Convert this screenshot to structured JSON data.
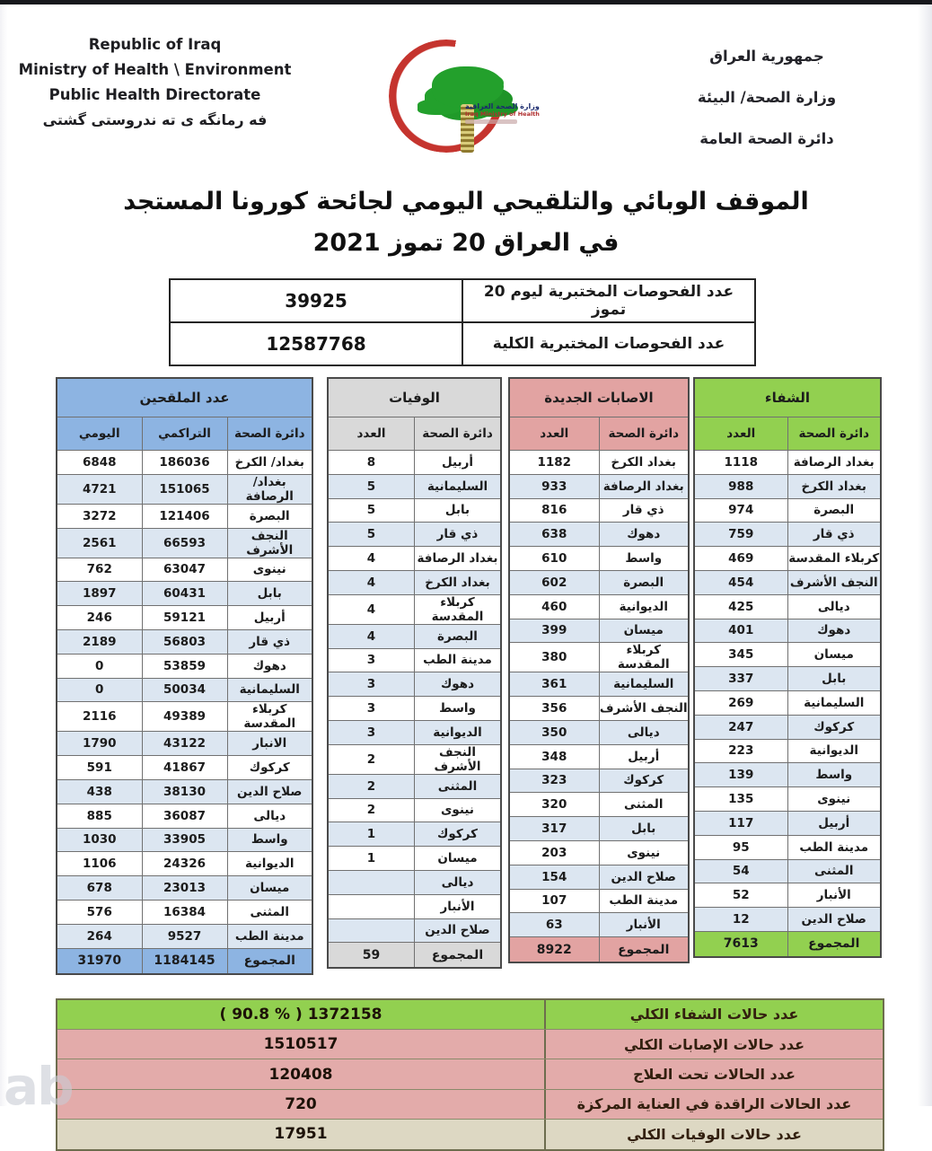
{
  "page": {
    "watermark": "ab"
  },
  "header": {
    "left": {
      "line1": "Republic of Iraq",
      "line2": "Ministry of Health \\ Environment",
      "line3": "Public Health Directorate",
      "line4": "فه رمانگه ی ته ندروستی گشتی"
    },
    "right": {
      "line1": "جمهورية العراق",
      "line2": "وزارة الصحة/ البيئة",
      "line3": "دائرة الصحة العامة"
    },
    "logo": {
      "arabic": "وزارة الصحة العراقية",
      "english": "Iraq Ministry of Health"
    }
  },
  "title": {
    "line1": "الموقف الوبائي والتلقيحي اليومي لجائحة كورونا المستجد",
    "line2": "في العراق 20  تموز 2021"
  },
  "tests": {
    "rows": [
      {
        "label": "عدد الفحوصات المختبرية  ليوم 20 تموز",
        "value": "39925"
      },
      {
        "label": "عدد الفحوصات المختبرية الكلية",
        "value": "12587768"
      }
    ]
  },
  "tables": {
    "vaccinated": {
      "title": "عدد الملقحين",
      "col_name": "دائرة الصحة",
      "col_cum": "التراكمي",
      "col_daily": "اليومي",
      "rows": [
        [
          "بغداد/ الكرخ",
          "186036",
          "6848"
        ],
        [
          "بغداد/ الرصافة",
          "151065",
          "4721"
        ],
        [
          "البصرة",
          "121406",
          "3272"
        ],
        [
          "النجف الأشرف",
          "66593",
          "2561"
        ],
        [
          "نينوى",
          "63047",
          "762"
        ],
        [
          "بابل",
          "60431",
          "1897"
        ],
        [
          "أربيل",
          "59121",
          "246"
        ],
        [
          "ذي قار",
          "56803",
          "2189"
        ],
        [
          "دهوك",
          "53859",
          "0"
        ],
        [
          "السليمانية",
          "50034",
          "0"
        ],
        [
          "كربلاء المقدسة",
          "49389",
          "2116"
        ],
        [
          "الانبار",
          "43122",
          "1790"
        ],
        [
          "كركوك",
          "41867",
          "591"
        ],
        [
          "صلاح الدين",
          "38130",
          "438"
        ],
        [
          "ديالى",
          "36087",
          "885"
        ],
        [
          "واسط",
          "33905",
          "1030"
        ],
        [
          "الديوانية",
          "24326",
          "1106"
        ],
        [
          "ميسان",
          "23013",
          "678"
        ],
        [
          "المثنى",
          "16384",
          "576"
        ],
        [
          "مدينة الطب",
          "9527",
          "264"
        ]
      ],
      "total": [
        "المجموع",
        "1184145",
        "31970"
      ]
    },
    "deaths": {
      "title": "الوفيات",
      "col_name": "دائرة الصحة",
      "col_count": "العدد",
      "rows": [
        [
          "أربيل",
          "8"
        ],
        [
          "السليمانية",
          "5"
        ],
        [
          "بابل",
          "5"
        ],
        [
          "ذي قار",
          "5"
        ],
        [
          "بغداد الرصافة",
          "4"
        ],
        [
          "بغداد الكرخ",
          "4"
        ],
        [
          "كربلاء المقدسة",
          "4"
        ],
        [
          "البصرة",
          "4"
        ],
        [
          "مدينة الطب",
          "3"
        ],
        [
          "دهوك",
          "3"
        ],
        [
          "واسط",
          "3"
        ],
        [
          "الديوانية",
          "3"
        ],
        [
          "النجف الأشرف",
          "2"
        ],
        [
          "المثنى",
          "2"
        ],
        [
          "نينوى",
          "2"
        ],
        [
          "كركوك",
          "1"
        ],
        [
          "ميسان",
          "1"
        ],
        [
          "ديالى",
          ""
        ],
        [
          "الأنبار",
          ""
        ],
        [
          "صلاح الدين",
          ""
        ]
      ],
      "total": [
        "المجموع",
        "59"
      ]
    },
    "infections": {
      "title": "الاصابات الجديدة",
      "col_name": "دائرة الصحة",
      "col_count": "العدد",
      "rows": [
        [
          "بغداد الكرخ",
          "1182"
        ],
        [
          "بغداد الرصافة",
          "933"
        ],
        [
          "ذي قار",
          "816"
        ],
        [
          "دهوك",
          "638"
        ],
        [
          "واسط",
          "610"
        ],
        [
          "البصرة",
          "602"
        ],
        [
          "الديوانية",
          "460"
        ],
        [
          "ميسان",
          "399"
        ],
        [
          "كربلاء المقدسة",
          "380"
        ],
        [
          "السليمانية",
          "361"
        ],
        [
          "النجف الأشرف",
          "356"
        ],
        [
          "ديالى",
          "350"
        ],
        [
          "أربيل",
          "348"
        ],
        [
          "كركوك",
          "323"
        ],
        [
          "المثنى",
          "320"
        ],
        [
          "بابل",
          "317"
        ],
        [
          "نينوى",
          "203"
        ],
        [
          "صلاح الدين",
          "154"
        ],
        [
          "مدينة الطب",
          "107"
        ],
        [
          "الأنبار",
          "63"
        ]
      ],
      "total": [
        "المجموع",
        "8922"
      ]
    },
    "recovery": {
      "title": "الشفاء",
      "col_name": "دائرة الصحة",
      "col_count": "العدد",
      "rows": [
        [
          "بغداد الرصافة",
          "1118"
        ],
        [
          "بغداد الكرخ",
          "988"
        ],
        [
          "البصرة",
          "974"
        ],
        [
          "ذي قار",
          "759"
        ],
        [
          "كربلاء المقدسة",
          "469"
        ],
        [
          "النجف الأشرف",
          "454"
        ],
        [
          "ديالى",
          "425"
        ],
        [
          "دهوك",
          "401"
        ],
        [
          "ميسان",
          "345"
        ],
        [
          "بابل",
          "337"
        ],
        [
          "السليمانية",
          "269"
        ],
        [
          "كركوك",
          "247"
        ],
        [
          "الديوانية",
          "223"
        ],
        [
          "واسط",
          "139"
        ],
        [
          "نينوى",
          "135"
        ],
        [
          "أربيل",
          "117"
        ],
        [
          "مدينة الطب",
          "95"
        ],
        [
          "المثنى",
          "54"
        ],
        [
          "الأنبار",
          "52"
        ],
        [
          "صلاح الدين",
          "12"
        ]
      ],
      "total": [
        "المجموع",
        "7613"
      ]
    }
  },
  "summary": {
    "rows": [
      {
        "label": "عدد حالات الشفاء الكلي",
        "value": "( 90.8 % )  1372158",
        "type": "sgreen"
      },
      {
        "label": "عدد حالات الإصابات الكلي",
        "value": "1510517",
        "type": "spink"
      },
      {
        "label": "عدد الحالات تحت العلاج",
        "value": "120408",
        "type": "spink"
      },
      {
        "label": "عدد الحالات الراقدة في العناية المركزة",
        "value": "720",
        "type": "spink"
      },
      {
        "label": "عدد حالات الوفيات الكلي",
        "value": "17951",
        "type": "sbeige"
      }
    ]
  },
  "colors": {
    "green": "#92d050",
    "blue": "#8db4e2",
    "pink": "#e2a3a2",
    "gray": "#d9d9d9",
    "stripe": "#dce6f1",
    "beige": "#ddd8c3",
    "crescent_red": "#c5342e",
    "tree_green": "#23a02c"
  }
}
